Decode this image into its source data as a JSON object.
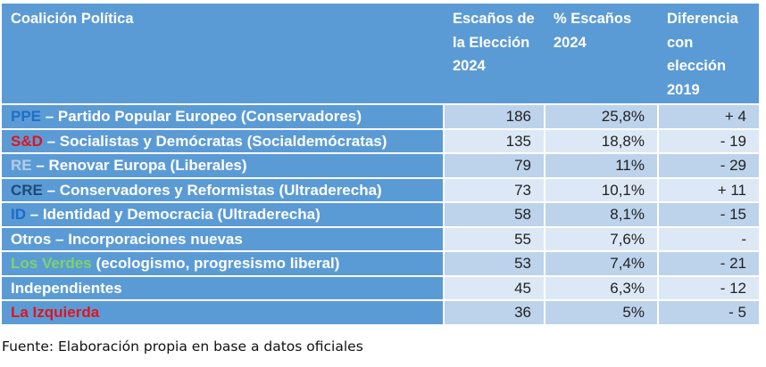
{
  "table": {
    "headers": [
      "Coalición Política",
      "Escaños de la Elección 2024",
      "% Escaños 2024",
      "Diferencia con elección 2019"
    ],
    "header_colors": {
      "header_bg": "#5b9bd5",
      "row_odd": "#bdd3ec",
      "row_even": "#dce8f5"
    },
    "rows": [
      {
        "abbr": "PPE",
        "abbr_color": "#1f6fc5",
        "rest": " – Partido Popular Europeo (Conservadores)",
        "seats": "186",
        "pct": "25,8%",
        "diff": "+ 4"
      },
      {
        "abbr": "S&D",
        "abbr_color": "#e0141e",
        "rest": " – Socialistas y Demócratas (Socialdemócratas)",
        "seats": "135",
        "pct": "18,8%",
        "diff": "- 19"
      },
      {
        "abbr": "RE",
        "abbr_color": "#b4cce8",
        "rest": " – Renovar Europa (Liberales)",
        "seats": "79",
        "pct": "11%",
        "diff": "- 29"
      },
      {
        "abbr": "CRE",
        "abbr_color": "#1c4a7a",
        "rest": " – Conservadores y Reformistas (Ultraderecha)",
        "seats": "73",
        "pct": "10,1%",
        "diff": "+ 11"
      },
      {
        "abbr": "ID",
        "abbr_color": "#1a6ccf",
        "rest": " – Identidad y Democracia (Ultraderecha)",
        "seats": "58",
        "pct": "8,1%",
        "diff": "- 15"
      },
      {
        "abbr": "",
        "abbr_color": "#ffffff",
        "rest": "Otros – Incorporaciones nuevas",
        "seats": "55",
        "pct": "7,6%",
        "diff": "-"
      },
      {
        "abbr": "Los Verdes",
        "abbr_color": "#7ed36a",
        "rest": " (ecologismo, progresismo liberal)",
        "seats": "53",
        "pct": "7,4%",
        "diff": "- 21"
      },
      {
        "abbr": "",
        "abbr_color": "#ffffff",
        "rest": "Independientes",
        "seats": "45",
        "pct": "6,3%",
        "diff": "- 12"
      },
      {
        "abbr": "La Izquierda",
        "abbr_color": "#e0141e",
        "rest": "",
        "seats": "36",
        "pct": "5%",
        "diff": "- 5"
      }
    ]
  },
  "source": "Fuente: Elaboración propia en base a datos oficiales"
}
